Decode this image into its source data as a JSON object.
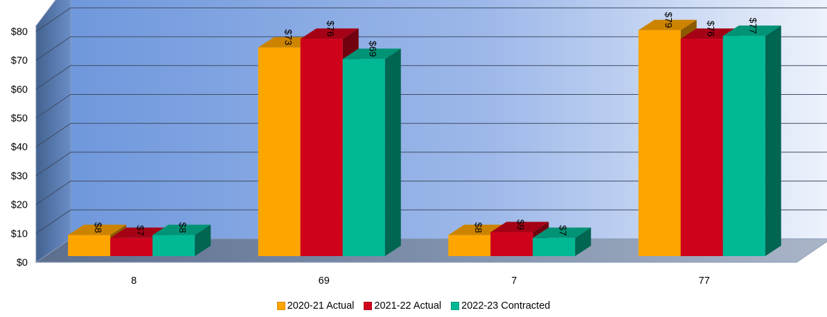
{
  "chart_data": {
    "type": "bar",
    "categories": [
      "8",
      "69",
      "7",
      "77"
    ],
    "series": [
      {
        "name": "2020-21 Actual",
        "color": "#FFA500",
        "values": [
          8,
          73,
          8,
          79
        ],
        "labels": [
          "$8",
          "$73",
          "$8",
          "$79"
        ]
      },
      {
        "name": "2021-22 Actual",
        "color": "#D0021B",
        "values": [
          7,
          76,
          9,
          76
        ],
        "labels": [
          "$7",
          "$76",
          "$9",
          "$76"
        ]
      },
      {
        "name": "2022-23 Contracted",
        "color": "#00B894",
        "values": [
          8,
          69,
          7,
          77
        ],
        "labels": [
          "$8",
          "$69",
          "$7",
          "$77"
        ]
      }
    ],
    "yticks": [
      "$0",
      "$10",
      "$20",
      "$30",
      "$40",
      "$50",
      "$60",
      "$70",
      "$80"
    ],
    "ylim": [
      0,
      80
    ],
    "grid": true,
    "legend": "bottom",
    "three_d": true
  }
}
